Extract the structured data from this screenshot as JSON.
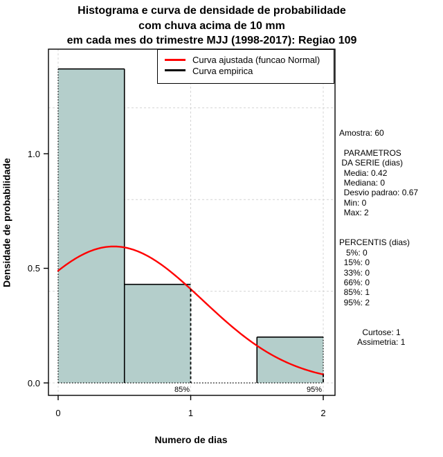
{
  "title": {
    "line1": "Histograma e curva de densidade de probabilidade",
    "line2": "com chuva acima de 10 mm",
    "line3": "em cada mes do trimestre MJJ (1998-2017): Regiao 109"
  },
  "chart_data": {
    "type": "bar",
    "subtype": "histogram-with-density-curves",
    "xlabel": "Numero de dias",
    "ylabel": "Densidade de probabilidade",
    "xlim": [
      0,
      2
    ],
    "ylim": [
      0,
      1.45
    ],
    "x_tick_values": [
      0,
      1,
      2
    ],
    "x_tick_labels": [
      "0",
      "1",
      "2"
    ],
    "y_tick_values": [
      0,
      0.5,
      1
    ],
    "y_tick_labels": [
      "0.0",
      "0.5",
      "1.0"
    ],
    "grid_x_values": [
      0,
      1,
      2
    ],
    "grid_y_values": [
      0,
      0.4,
      0.8,
      1.2
    ],
    "bars": [
      {
        "x0": 0.0,
        "x1": 0.5,
        "density": 1.37
      },
      {
        "x0": 0.5,
        "x1": 1.0,
        "density": 0.43
      },
      {
        "x0": 1.0,
        "x1": 1.5,
        "density": 0.0
      },
      {
        "x0": 1.5,
        "x1": 2.0,
        "density": 0.2
      }
    ],
    "fitted_normal": {
      "mean": 0.42,
      "sd": 0.67
    },
    "percentile_markers": [
      {
        "label": "85%",
        "x": 1
      },
      {
        "label": "95%",
        "x": 2
      }
    ],
    "legend": [
      {
        "label": "Curva ajustada (funcao Normal)",
        "color": "#ff0000"
      },
      {
        "label": "Curva empirica",
        "color": "#000000"
      }
    ],
    "colors": {
      "bar_fill": "#b4cecb",
      "fitted_curve": "#ff0000",
      "empirical_curve": "#000000",
      "grid": "#d4d4d4"
    },
    "legend_position": "top",
    "grid": true
  },
  "right_panel": {
    "lines": [
      "Amostra: 60",
      "",
      "  PARAMETROS",
      " DA SERIE (dias)",
      "  Media: 0.42",
      "  Mediana: 0",
      "  Desvio padrao: 0.67",
      "  Min: 0",
      "  Max: 2",
      "",
      "",
      "PERCENTIS (dias)",
      "   5%: 0",
      "  15%: 0",
      "  33%: 0",
      "  66%: 0",
      "  85%: 1",
      "  95%: 2",
      "",
      "",
      "          Curtose: 1",
      "        Assimetria: 1"
    ]
  }
}
